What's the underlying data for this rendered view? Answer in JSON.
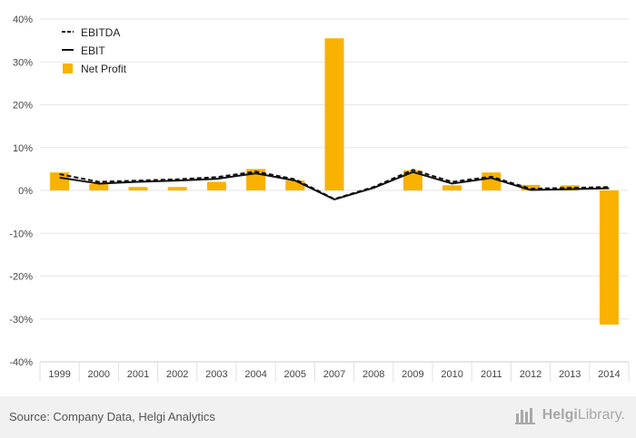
{
  "chart_data": {
    "type": "bar",
    "categories": [
      "1999",
      "2000",
      "2001",
      "2002",
      "2003",
      "2004",
      "2005",
      "2007",
      "2008",
      "2009",
      "2010",
      "2011",
      "2012",
      "2013",
      "2014"
    ],
    "series": [
      {
        "name": "EBITDA",
        "kind": "line",
        "style": "dashed",
        "values": [
          3.8,
          2.0,
          2.3,
          2.6,
          3.1,
          4.4,
          2.6,
          -2.0,
          0.8,
          4.8,
          2.0,
          3.2,
          0.4,
          0.6,
          0.8
        ]
      },
      {
        "name": "EBIT",
        "kind": "line",
        "style": "solid",
        "values": [
          3.0,
          1.6,
          2.0,
          2.3,
          2.7,
          4.0,
          2.3,
          -2.1,
          0.6,
          4.3,
          1.6,
          2.9,
          0.1,
          0.3,
          0.5
        ]
      },
      {
        "name": "Net Profit",
        "kind": "bar",
        "values": [
          4.2,
          1.5,
          0.8,
          0.8,
          2.0,
          5.0,
          2.3,
          35.5,
          0.0,
          4.7,
          1.2,
          4.2,
          1.3,
          1.2,
          -31.3
        ]
      }
    ],
    "y_ticks": [
      "40%",
      "30%",
      "20%",
      "10%",
      "0%",
      "-10%",
      "-20%",
      "-30%",
      "-40%"
    ],
    "ylim": [
      -40,
      40
    ],
    "xlabel": "",
    "ylabel": "",
    "legend": "top-left",
    "grid": true
  },
  "colors": {
    "bar": "#f9b200",
    "line": "#111111",
    "grid": "#e6e6e6",
    "axis_text": "#444444"
  },
  "footer": {
    "source": "Source: Company Data, Helgi Analytics",
    "logo_name_a": "Helgi",
    "logo_name_b": "Library.",
    "logo_icon": "helgilibrary-logo-icon"
  }
}
